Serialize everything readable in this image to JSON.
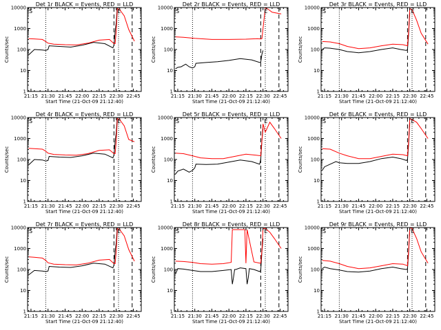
{
  "panel_titles": [
    "Det 1r BLACK = Events, RED = LLD",
    "Det 2r BLACK = Events, RED = LLD",
    "Det 3r BLACK = Events, RED = LLD",
    "Det 4r BLACK = Events, RED = LLD",
    "Det 5r BLACK = Events, RED = LLD",
    "Det 6r BLACK = Events, RED = LLD",
    "Det 7r BLACK = Events, RED = LLD",
    "Det 8r BLACK = Events, RED = LLD",
    "Det 9r BLACK = Events, RED = LLD"
  ],
  "xlabel": "Start Time (21-Oct-09 21:12:40)",
  "ylabel": "Counts/sec",
  "colors": {
    "events": "#000000",
    "lld": "#ff0000",
    "axes": "#000000"
  },
  "chart_data": [
    {
      "type": "line",
      "title": "Det 1r BLACK = Events, RED = LLD",
      "xlabel": "Start Time (21-Oct-09 21:12:40)",
      "ylabel": "Counts/sec",
      "x_ticks": [
        "21:15",
        "21:30",
        "21:45",
        "22:00",
        "22:15",
        "22:30",
        "22:45"
      ],
      "y_ticks": [
        "1",
        "10",
        "100",
        "1000",
        "10000"
      ],
      "yscale": "log",
      "ylim": [
        1,
        10000
      ],
      "markers": [
        "S",
        "E"
      ],
      "series": [
        {
          "x": [
            "21:13",
            "21:18",
            "21:25",
            "21:28",
            "21:30",
            "21:31",
            "21:40",
            "21:50",
            "22:00",
            "22:10",
            "22:20",
            "22:27",
            "22:28",
            "22:29",
            "22:30",
            "22:31"
          ],
          "values": [
            55,
            100,
            95,
            90,
            100,
            150,
            140,
            130,
            160,
            220,
            190,
            120,
            160,
            700,
            2000,
            12000
          ]
        },
        {
          "x": [
            "21:13",
            "21:18",
            "21:25",
            "21:28",
            "21:30",
            "21:35",
            "21:45",
            "21:55",
            "22:05",
            "22:15",
            "22:24",
            "22:28",
            "22:29",
            "22:30",
            "22:31",
            "22:33",
            "22:37",
            "22:41",
            "22:46"
          ],
          "values": [
            330,
            320,
            300,
            240,
            200,
            180,
            170,
            165,
            200,
            280,
            300,
            190,
            190,
            800,
            9000,
            8000,
            4000,
            900,
            250
          ]
        }
      ]
    },
    {
      "type": "line",
      "title": "Det 2r BLACK = Events, RED = LLD",
      "xlabel": "Start Time (21-Oct-09 21:12:40)",
      "ylabel": "Counts/sec",
      "x_ticks": [
        "21:15",
        "21:30",
        "21:45",
        "22:00",
        "22:15",
        "22:30",
        "22:45"
      ],
      "y_ticks": [
        "1",
        "10",
        "100",
        "1000",
        "10000"
      ],
      "yscale": "log",
      "ylim": [
        1,
        10000
      ],
      "markers": [
        "S",
        "E"
      ],
      "series": [
        {
          "x": [
            "21:13",
            "21:15",
            "21:18",
            "21:22",
            "21:25",
            "21:28",
            "21:30",
            "21:31",
            "21:40",
            "21:50",
            "22:00",
            "22:10",
            "22:20",
            "22:27",
            "22:28",
            "22:29",
            "22:30"
          ],
          "values": [
            12,
            14,
            15,
            20,
            15,
            13,
            15,
            22,
            24,
            26,
            30,
            37,
            32,
            24,
            25,
            60,
            90
          ]
        },
        {
          "x": [
            "21:13",
            "21:20",
            "21:30",
            "21:45",
            "22:00",
            "22:15",
            "22:25",
            "22:28",
            "22:29",
            "22:30",
            "22:32",
            "22:35",
            "22:38",
            "22:46"
          ],
          "values": [
            400,
            380,
            340,
            300,
            300,
            310,
            330,
            320,
            330,
            1000,
            10000,
            8000,
            6000,
            5000
          ]
        }
      ]
    },
    {
      "type": "line",
      "title": "Det 3r BLACK = Events, RED = LLD",
      "xlabel": "Start Time (21-Oct-09 21:12:40)",
      "ylabel": "Counts/sec",
      "x_ticks": [
        "21:15",
        "21:30",
        "21:45",
        "22:00",
        "22:15",
        "22:30",
        "22:45"
      ],
      "y_ticks": [
        "1",
        "10",
        "100",
        "1000",
        "10000"
      ],
      "yscale": "log",
      "ylim": [
        1,
        10000
      ],
      "markers": [
        "S",
        "E"
      ],
      "series": [
        {
          "x": [
            "21:13",
            "21:15",
            "21:20",
            "21:28",
            "21:35",
            "21:45",
            "21:55",
            "22:05",
            "22:15",
            "22:22",
            "22:27",
            "22:28",
            "22:29",
            "22:30"
          ],
          "values": [
            100,
            120,
            115,
            100,
            80,
            70,
            80,
            100,
            120,
            100,
            90,
            100,
            600,
            6000
          ]
        },
        {
          "x": [
            "21:13",
            "21:20",
            "21:28",
            "21:35",
            "21:45",
            "21:55",
            "22:05",
            "22:15",
            "22:24",
            "22:28",
            "22:29",
            "22:30",
            "22:32",
            "22:36",
            "22:40",
            "22:46"
          ],
          "values": [
            240,
            230,
            190,
            140,
            110,
            120,
            150,
            180,
            170,
            150,
            800,
            9000,
            8000,
            2500,
            600,
            180
          ]
        }
      ]
    },
    {
      "type": "line",
      "title": "Det 4r BLACK = Events, RED = LLD",
      "xlabel": "Start Time (21-Oct-09 21:12:40)",
      "ylabel": "Counts/sec",
      "x_ticks": [
        "21:15",
        "21:30",
        "21:45",
        "22:00",
        "22:15",
        "22:30",
        "22:45"
      ],
      "y_ticks": [
        "1",
        "10",
        "100",
        "1000",
        "10000"
      ],
      "yscale": "log",
      "ylim": [
        1,
        10000
      ],
      "markers": [
        "S",
        "E"
      ],
      "series": [
        {
          "x": [
            "21:13",
            "21:18",
            "21:25",
            "21:28",
            "21:30",
            "21:31",
            "21:40",
            "21:50",
            "22:00",
            "22:10",
            "22:20",
            "22:27",
            "22:28",
            "22:29",
            "22:30",
            "22:31"
          ],
          "values": [
            55,
            100,
            95,
            85,
            90,
            140,
            130,
            125,
            150,
            200,
            180,
            120,
            160,
            700,
            2000,
            12000
          ]
        },
        {
          "x": [
            "21:13",
            "21:18",
            "21:25",
            "21:28",
            "21:30",
            "21:35",
            "21:45",
            "21:55",
            "22:05",
            "22:15",
            "22:24",
            "22:28",
            "22:29",
            "22:30",
            "22:31",
            "22:33",
            "22:37",
            "22:41",
            "22:46"
          ],
          "values": [
            340,
            330,
            310,
            250,
            200,
            175,
            165,
            160,
            190,
            270,
            290,
            190,
            190,
            800,
            9000,
            8000,
            4000,
            900,
            700
          ]
        }
      ]
    },
    {
      "type": "line",
      "title": "Det 5r BLACK = Events, RED = LLD",
      "xlabel": "Start Time (21-Oct-09 21:12:40)",
      "ylabel": "Counts/sec",
      "x_ticks": [
        "21:15",
        "21:30",
        "21:45",
        "22:00",
        "22:15",
        "22:30",
        "22:45"
      ],
      "y_ticks": [
        "1",
        "10",
        "100",
        "1000",
        "10000"
      ],
      "yscale": "log",
      "ylim": [
        1,
        10000
      ],
      "markers": [
        "S",
        "E"
      ],
      "series": [
        {
          "x": [
            "21:13",
            "21:15",
            "21:20",
            "21:25",
            "21:28",
            "21:30",
            "21:31",
            "21:40",
            "21:50",
            "22:00",
            "22:10",
            "22:20",
            "22:27",
            "22:28",
            "22:29",
            "22:30"
          ],
          "values": [
            20,
            28,
            35,
            25,
            30,
            40,
            60,
            58,
            60,
            75,
            95,
            80,
            60,
            100,
            800,
            3000
          ]
        },
        {
          "x": [
            "21:13",
            "21:20",
            "21:28",
            "21:35",
            "21:45",
            "21:55",
            "22:05",
            "22:15",
            "22:24",
            "22:28",
            "22:29",
            "22:30",
            "22:32",
            "22:36",
            "22:40",
            "22:46"
          ],
          "values": [
            200,
            190,
            150,
            120,
            110,
            110,
            140,
            180,
            160,
            150,
            800,
            5000,
            2000,
            6000,
            3000,
            1000
          ]
        }
      ]
    },
    {
      "type": "line",
      "title": "Det 6r BLACK = Events, RED = LLD",
      "xlabel": "Start Time (21-Oct-09 21:12:40)",
      "ylabel": "Counts/sec",
      "x_ticks": [
        "21:15",
        "21:30",
        "21:45",
        "22:00",
        "22:15",
        "22:30",
        "22:45"
      ],
      "y_ticks": [
        "1",
        "10",
        "100",
        "1000",
        "10000"
      ],
      "yscale": "log",
      "ylim": [
        1,
        10000
      ],
      "markers": [
        "S",
        "E"
      ],
      "series": [
        {
          "x": [
            "21:13",
            "21:15",
            "21:20",
            "21:25",
            "21:28",
            "21:35",
            "21:45",
            "21:55",
            "22:05",
            "22:15",
            "22:22",
            "22:27",
            "22:28",
            "22:29",
            "22:30"
          ],
          "values": [
            30,
            45,
            60,
            80,
            70,
            65,
            65,
            80,
            110,
            130,
            110,
            90,
            100,
            600,
            6000
          ]
        },
        {
          "x": [
            "21:13",
            "21:20",
            "21:28",
            "21:35",
            "21:45",
            "21:55",
            "22:05",
            "22:15",
            "22:24",
            "22:28",
            "22:29",
            "22:30",
            "22:32",
            "22:36",
            "22:40",
            "22:46"
          ],
          "values": [
            330,
            310,
            200,
            150,
            110,
            110,
            140,
            180,
            170,
            150,
            800,
            9000,
            8000,
            6000,
            3000,
            1000
          ]
        }
      ]
    },
    {
      "type": "line",
      "title": "Det 7r BLACK = Events, RED = LLD",
      "xlabel": "Start Time (21-Oct-09 21:12:40)",
      "ylabel": "Counts/sec",
      "x_ticks": [
        "21:15",
        "21:30",
        "21:45",
        "22:00",
        "22:15",
        "22:30",
        "22:45"
      ],
      "y_ticks": [
        "1",
        "10",
        "100",
        "1000",
        "10000"
      ],
      "yscale": "log",
      "ylim": [
        1,
        10000
      ],
      "markers": [
        "S",
        "E"
      ],
      "series": [
        {
          "x": [
            "21:13",
            "21:18",
            "21:25",
            "21:28",
            "21:30",
            "21:31",
            "21:40",
            "21:50",
            "22:00",
            "22:10",
            "22:20",
            "22:27",
            "22:28",
            "22:29",
            "22:30",
            "22:31"
          ],
          "values": [
            55,
            90,
            85,
            80,
            85,
            140,
            130,
            125,
            150,
            200,
            180,
            120,
            160,
            700,
            2000,
            12000
          ]
        },
        {
          "x": [
            "21:13",
            "21:18",
            "21:25",
            "21:28",
            "21:30",
            "21:35",
            "21:45",
            "21:55",
            "22:05",
            "22:15",
            "22:24",
            "22:28",
            "22:29",
            "22:30",
            "22:31",
            "22:33",
            "22:37",
            "22:41",
            "22:46"
          ],
          "values": [
            400,
            380,
            350,
            270,
            210,
            180,
            170,
            165,
            200,
            280,
            300,
            190,
            190,
            800,
            9000,
            8000,
            4000,
            900,
            250
          ]
        }
      ]
    },
    {
      "type": "line",
      "title": "Det 8r BLACK = Events, RED = LLD",
      "xlabel": "Start Time (21-Oct-09 21:12:40)",
      "ylabel": "Counts/sec",
      "x_ticks": [
        "21:15",
        "21:30",
        "21:45",
        "22:00",
        "22:15",
        "22:30",
        "22:45"
      ],
      "y_ticks": [
        "1",
        "10",
        "100",
        "1000",
        "10000"
      ],
      "yscale": "log",
      "ylim": [
        1,
        10000
      ],
      "markers": [
        "S",
        "E"
      ],
      "series": [
        {
          "x": [
            "21:13",
            "21:15",
            "21:20",
            "21:28",
            "21:35",
            "21:45",
            "21:55",
            "22:02",
            "22:03",
            "22:04",
            "22:05",
            "22:06",
            "22:10",
            "22:15",
            "22:16",
            "22:17",
            "22:18",
            "22:22",
            "22:27",
            "22:28",
            "22:29",
            "22:30"
          ],
          "values": [
            60,
            110,
            105,
            90,
            80,
            80,
            90,
            100,
            20,
            40,
            100,
            100,
            120,
            110,
            20,
            40,
            110,
            100,
            80,
            90,
            700,
            3000
          ]
        },
        {
          "x": [
            "21:13",
            "21:20",
            "21:28",
            "21:35",
            "21:45",
            "21:55",
            "22:02",
            "22:03",
            "22:14",
            "22:15",
            "22:16",
            "22:22",
            "22:27",
            "22:28",
            "22:29",
            "22:30",
            "22:32",
            "22:36",
            "22:40",
            "22:46"
          ],
          "values": [
            250,
            240,
            220,
            190,
            180,
            190,
            220,
            8000,
            8000,
            200,
            8000,
            230,
            200,
            200,
            800,
            9000,
            9000,
            6000,
            3000,
            1000
          ]
        }
      ]
    },
    {
      "type": "line",
      "title": "Det 9r BLACK = Events, RED = LLD",
      "xlabel": "Start Time (21-Oct-09 21:12:40)",
      "ylabel": "Counts/sec",
      "x_ticks": [
        "21:15",
        "21:30",
        "21:45",
        "22:00",
        "22:15",
        "22:30",
        "22:45"
      ],
      "y_ticks": [
        "1",
        "10",
        "100",
        "1000",
        "10000"
      ],
      "yscale": "log",
      "ylim": [
        1,
        10000
      ],
      "markers": [
        "S",
        "E"
      ],
      "series": [
        {
          "x": [
            "21:13",
            "21:15",
            "21:20",
            "21:28",
            "21:35",
            "21:45",
            "21:55",
            "22:05",
            "22:15",
            "22:22",
            "22:27",
            "22:28",
            "22:29",
            "22:30"
          ],
          "values": [
            110,
            130,
            110,
            95,
            80,
            75,
            85,
            110,
            130,
            110,
            100,
            110,
            700,
            8000
          ]
        },
        {
          "x": [
            "21:13",
            "21:20",
            "21:28",
            "21:35",
            "21:45",
            "21:55",
            "22:05",
            "22:15",
            "22:24",
            "22:28",
            "22:29",
            "22:30",
            "22:32",
            "22:36",
            "22:40",
            "22:46"
          ],
          "values": [
            270,
            250,
            190,
            140,
            110,
            120,
            150,
            190,
            180,
            150,
            900,
            10000,
            9000,
            3000,
            700,
            200
          ]
        }
      ]
    }
  ]
}
